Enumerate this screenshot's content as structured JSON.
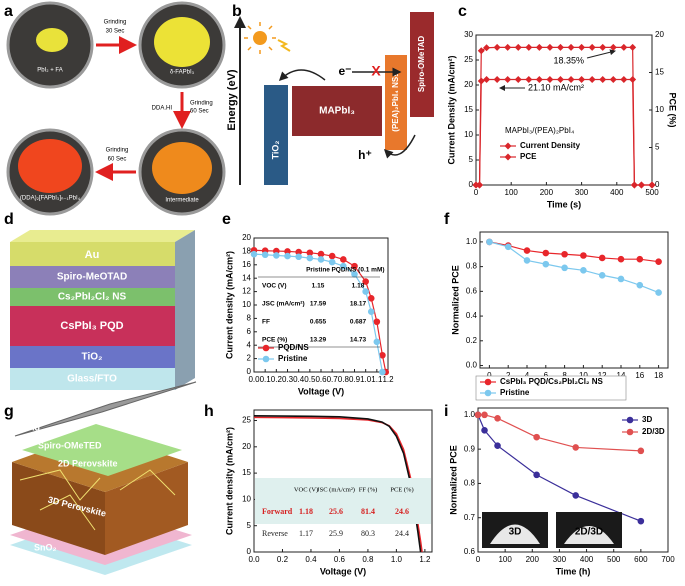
{
  "panel_labels": [
    "a",
    "b",
    "c",
    "d",
    "e",
    "f",
    "g",
    "h",
    "i"
  ],
  "panel_a": {
    "samples": [
      "PbI₂ + FA",
      "δ-FAPbI₃",
      "Intermediate",
      "(DDA)₂[FAPbI₃]ₙ₋₁PbI₄"
    ],
    "steps": [
      {
        "lines": [
          "Grinding",
          "30 Sec"
        ]
      },
      {
        "reagent": "DDA.HI",
        "lines": [
          "Grinding",
          "60 Sec"
        ]
      },
      {
        "lines": [
          "Grinding",
          "60 Sec"
        ]
      }
    ]
  },
  "panel_b": {
    "axis_label": "Energy (eV)",
    "layers": [
      "TiO₂",
      "MAPbI₃",
      "(PEA)₂PbI₄ NSs",
      "Spiro-OMeTAD"
    ],
    "electron": "e⁻",
    "hole": "h⁺",
    "blocked": "X"
  },
  "panel_d": {
    "layers": [
      "Au",
      "Spiro-MeOTAD",
      "Cs₂PbI₂Cl₂ NS",
      "CsPbI₃ PQD",
      "TiO₂",
      "Glass/FTO"
    ]
  },
  "panel_g": {
    "layers": [
      "Ag",
      "Spiro-OMeTED",
      "2D Perovskite",
      "3D Perovskite",
      "SnO₂",
      "ITO"
    ]
  },
  "chart_data": [
    {
      "type": "line",
      "marker": "diamond",
      "xlabel": "Time (s)",
      "ylabel": "Current Density (mA/cm²)",
      "y2label": "PCE (%)",
      "x": [
        0,
        10,
        15,
        30,
        60,
        90,
        120,
        150,
        180,
        210,
        240,
        270,
        300,
        330,
        360,
        390,
        420,
        445,
        450,
        470,
        500
      ],
      "xlim": [
        0,
        500
      ],
      "xticks": [
        0,
        100,
        200,
        300,
        400,
        500
      ],
      "ylim": [
        0,
        30
      ],
      "yticks": [
        0,
        5,
        10,
        15,
        20,
        25,
        30
      ],
      "y2lim": [
        0,
        20
      ],
      "y2ticks": [
        0,
        5,
        10,
        15,
        20
      ],
      "legend_title": "MAPbI₃/(PEA)₂PbI₄",
      "annotations": [
        "18.35%",
        "21.10 mA/cm²"
      ],
      "series": [
        {
          "name": "Current Density",
          "color": "#d9262b",
          "values": [
            0,
            0,
            20.8,
            21.1,
            21.1,
            21.1,
            21.1,
            21.1,
            21.1,
            21.1,
            21.1,
            21.1,
            21.1,
            21.1,
            21.1,
            21.1,
            21.1,
            21.1,
            0,
            0,
            0
          ]
        },
        {
          "name": "PCE",
          "color": "#d9262b",
          "axis": "y2",
          "values": [
            0,
            0,
            17.9,
            18.3,
            18.35,
            18.35,
            18.35,
            18.35,
            18.35,
            18.35,
            18.35,
            18.35,
            18.35,
            18.35,
            18.35,
            18.35,
            18.35,
            18.35,
            0,
            0,
            0
          ]
        }
      ]
    },
    {
      "type": "line",
      "marker": "circle",
      "xlabel": "Voltage (V)",
      "ylabel": "Current density (mA/cm²)",
      "x": [
        0,
        0.1,
        0.2,
        0.3,
        0.4,
        0.5,
        0.6,
        0.7,
        0.8,
        0.9,
        1.0,
        1.05,
        1.1,
        1.15,
        1.18
      ],
      "xlim": [
        0,
        1.2
      ],
      "xticks": [
        {
          "value": 0,
          "label": "0.0"
        },
        0.1,
        0.2,
        0.3,
        0.4,
        0.5,
        0.6,
        0.7,
        0.8,
        0.9,
        {
          "value": 1,
          "label": "1.0"
        },
        1.1,
        1.2
      ],
      "ylim": [
        0,
        20
      ],
      "yticks": [
        0,
        2,
        4,
        6,
        8,
        10,
        12,
        14,
        16,
        18,
        20
      ],
      "table": {
        "columns": [
          "Pristine",
          "PQD/NS (0.1 mM)"
        ],
        "rows": [
          {
            "label": "VOC (V)",
            "values": [
              1.15,
              1.18
            ]
          },
          {
            "label": "JSC (mA/cm²)",
            "values": [
              17.59,
              18.17
            ]
          },
          {
            "label": "FF",
            "values": [
              0.655,
              0.687
            ]
          },
          {
            "label": "PCE (%)",
            "values": [
              13.29,
              14.73
            ]
          }
        ]
      },
      "series": [
        {
          "name": "PQD/NS",
          "color": "#e8262b",
          "values": [
            18.17,
            18.1,
            18.05,
            18.0,
            17.9,
            17.8,
            17.6,
            17.3,
            16.8,
            15.8,
            13.5,
            11.0,
            7.5,
            2.5,
            0
          ]
        },
        {
          "name": "Pristine",
          "color": "#7cc8ee",
          "values": [
            17.59,
            17.5,
            17.4,
            17.3,
            17.2,
            17.0,
            16.8,
            16.4,
            15.8,
            14.6,
            12,
            9,
            4.5,
            0,
            null
          ]
        }
      ]
    },
    {
      "type": "line",
      "marker": "circle",
      "xlabel": "Time (d)",
      "ylabel": "Normalized PCE",
      "x": [
        0,
        2,
        4,
        6,
        8,
        10,
        12,
        14,
        16,
        18
      ],
      "xlim": [
        -1,
        19
      ],
      "xticks": [
        0,
        2,
        4,
        6,
        8,
        10,
        12,
        14,
        16,
        18
      ],
      "ylim": [
        -0.02,
        1.08
      ],
      "yticks": [
        {
          "value": 0,
          "label": "0.0"
        },
        0.2,
        0.4,
        0.6,
        0.8,
        {
          "value": 1,
          "label": "1.0"
        }
      ],
      "series": [
        {
          "name": "CsPbI₃ PQD/Cs₂PbI₂Cl₂ NS",
          "color": "#e8262b",
          "values": [
            1,
            0.97,
            0.93,
            0.91,
            0.9,
            0.89,
            0.87,
            0.86,
            0.86,
            0.84
          ]
        },
        {
          "name": "Pristine",
          "color": "#7cc8ee",
          "values": [
            1,
            0.96,
            0.85,
            0.82,
            0.79,
            0.77,
            0.73,
            0.7,
            0.65,
            0.59
          ]
        }
      ]
    },
    {
      "type": "line",
      "marker": "none",
      "xlabel": "Voltage (V)",
      "ylabel": "Current density (mA/cm²)",
      "x": [
        0,
        0.2,
        0.4,
        0.6,
        0.8,
        0.9,
        0.95,
        1.0,
        1.05,
        1.1,
        1.15,
        1.17,
        1.18
      ],
      "xlim": [
        0,
        1.25
      ],
      "xticks": [
        {
          "value": 0,
          "label": "0.0"
        },
        0.2,
        0.4,
        0.6,
        0.8,
        {
          "value": 1,
          "label": "1.0"
        },
        1.2
      ],
      "ylim": [
        0,
        27
      ],
      "yticks": [
        0,
        5,
        10,
        15,
        20,
        25
      ],
      "table": {
        "columns": [
          "VOC (V)",
          "JSC (mA/cm²)",
          "FF (%)",
          "PCE (%)"
        ],
        "rows": [
          {
            "label": "Forward",
            "values": [
              1.18,
              25.6,
              81.4,
              24.6
            ]
          },
          {
            "label": "Reverse",
            "values": [
              1.17,
              25.9,
              80.3,
              24.4
            ]
          }
        ]
      },
      "series": [
        {
          "color": "#e8262b",
          "values": [
            25.6,
            25.55,
            25.5,
            25.4,
            25.1,
            24.6,
            24.0,
            22.5,
            19.5,
            14,
            5.5,
            2,
            0
          ]
        },
        {
          "color": "#111111",
          "values": [
            25.9,
            25.85,
            25.8,
            25.7,
            25.3,
            24.7,
            23.9,
            22.0,
            18.8,
            13,
            4,
            0,
            null
          ]
        }
      ]
    },
    {
      "type": "line",
      "marker": "circle",
      "xlabel": "Time (h)",
      "ylabel": "Normalized PCE",
      "x": [
        0,
        24,
        72,
        216,
        360,
        600
      ],
      "xlim": [
        0,
        700
      ],
      "xticks": [
        0,
        100,
        200,
        300,
        400,
        500,
        600,
        700
      ],
      "ylim": [
        0.6,
        1.02
      ],
      "yticks": [
        0.6,
        0.7,
        0.8,
        0.9,
        {
          "value": 1,
          "label": "1.0"
        }
      ],
      "annotations": [
        "3D",
        "2D/3D"
      ],
      "series": [
        {
          "name": "3D",
          "color": "#3b2f9a",
          "values": [
            1.0,
            0.955,
            0.91,
            0.825,
            0.765,
            0.69
          ]
        },
        {
          "name": "2D/3D",
          "color": "#e05050",
          "values": [
            1.0,
            1.0,
            0.99,
            0.935,
            0.905,
            0.895
          ]
        }
      ]
    }
  ]
}
